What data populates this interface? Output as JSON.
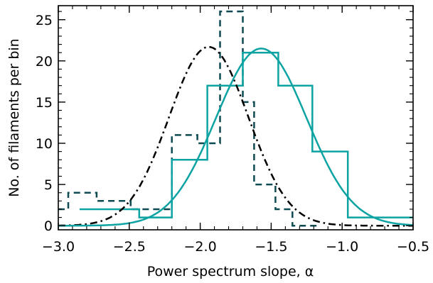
{
  "chart_data": {
    "type": "step-histogram",
    "xlabel": "Power spectrum slope, α",
    "ylabel": "No. of filaments per bin",
    "xlim": [
      -3.0,
      -0.5
    ],
    "ylim": [
      -0.5,
      26.7
    ],
    "x_ticks": [
      -3.0,
      -2.5,
      -2.0,
      -1.5,
      -1.0,
      -0.5
    ],
    "x_tick_labels": [
      "−3.0",
      "−2.5",
      "−2.0",
      "−1.5",
      "−1.0",
      "−0.5"
    ],
    "y_ticks": [
      0,
      5,
      10,
      15,
      20,
      25
    ],
    "y_tick_labels": [
      "0",
      "5",
      "10",
      "15",
      "20",
      "25"
    ],
    "grid": false,
    "legend": false,
    "series": [
      {
        "kind": "histogram",
        "style": "dashed",
        "color": "#0e4a52",
        "bin_edges": [
          -3.0,
          -2.93,
          -2.73,
          -2.49,
          -2.2,
          -2.02,
          -1.86,
          -1.7,
          -1.62,
          -1.47,
          -1.35,
          -1.17
        ],
        "counts": [
          2,
          4,
          3,
          2,
          11,
          10,
          26,
          15,
          5,
          2,
          0
        ]
      },
      {
        "kind": "histogram",
        "style": "solid",
        "color": "#0ea3a3",
        "bin_edges": [
          -2.85,
          -2.43,
          -2.2,
          -1.95,
          -1.7,
          -1.45,
          -1.21,
          -0.96,
          -0.5
        ],
        "counts": [
          2,
          1,
          8,
          17,
          21,
          17,
          9,
          1
        ]
      },
      {
        "kind": "gaussian-fit",
        "style": "dash-dot",
        "color": "#000000",
        "amplitude": 21.7,
        "mean": -1.94,
        "sigma": 0.28
      },
      {
        "kind": "gaussian-fit",
        "style": "solid",
        "color": "#0ea3a3",
        "amplitude": 21.5,
        "mean": -1.57,
        "sigma": 0.32
      }
    ]
  }
}
